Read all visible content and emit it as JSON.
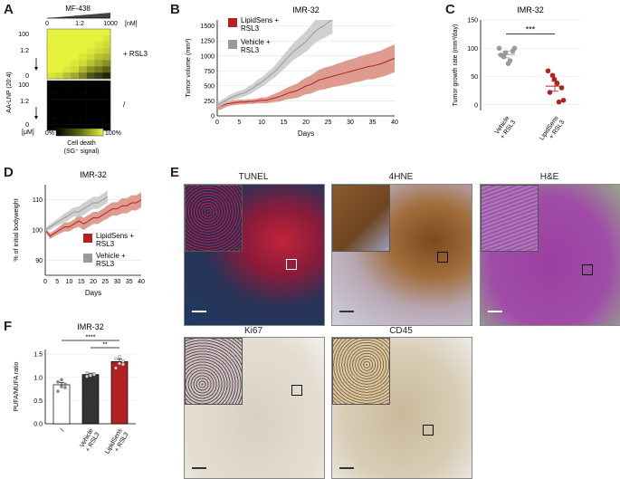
{
  "panels": {
    "A": {
      "letter": "A",
      "title": "MF-438",
      "ratio_label": "1:2",
      "unit_top": "[nM]",
      "ylabel": "AA-LNP (20:4)",
      "yticks": [
        "100",
        "1:2",
        "0"
      ],
      "group_top": "+ RSL3",
      "group_bottom": "/",
      "unit_bottom": "[μM]",
      "legend_title": "Cell death",
      "legend_sub": "(SG⁺ signal)",
      "legend_min": "0%",
      "legend_max": "100%"
    },
    "B": {
      "letter": "B",
      "title": "IMR-32"
    },
    "C": {
      "letter": "C",
      "title": "IMR-32"
    },
    "D": {
      "letter": "D",
      "title": "IMR-32"
    },
    "E": {
      "letter": "E",
      "stains": [
        "TUNEL",
        "4HNE",
        "H&E",
        "Ki67",
        "CD45"
      ]
    },
    "F": {
      "letter": "F",
      "title": "IMR-32"
    }
  },
  "colors": {
    "lipidsens": "#b22222",
    "lipidsens_band": "#d88b7e",
    "vehicle": "#9a9a9a",
    "vehicle_band": "#c8c8c8",
    "heat_high": "#e6f23c",
    "heat_low": "#000000"
  },
  "chart_data": [
    {
      "panel": "A",
      "type": "heatmap",
      "groups": [
        {
          "name": "+ RSL3",
          "rows": 8,
          "cols": 8,
          "values": [
            [
              1,
              1,
              1,
              1,
              1,
              1,
              1,
              1
            ],
            [
              1,
              1,
              1,
              1,
              1,
              1,
              1,
              0.95
            ],
            [
              1,
              1,
              1,
              1,
              1,
              1,
              0.95,
              0.9
            ],
            [
              1,
              1,
              1,
              1,
              1,
              0.95,
              0.9,
              0.85
            ],
            [
              1,
              1,
              1,
              1,
              0.95,
              0.9,
              0.8,
              0.75
            ],
            [
              1,
              1,
              1,
              0.95,
              0.9,
              0.8,
              0.7,
              0.6
            ],
            [
              1,
              1,
              0.95,
              0.9,
              0.75,
              0.6,
              0.5,
              0.4
            ],
            [
              0.95,
              0.9,
              0.8,
              0.7,
              0.55,
              0.35,
              0.25,
              0.15
            ]
          ]
        },
        {
          "name": "/",
          "rows": 8,
          "cols": 8,
          "values": [
            [
              0,
              0,
              0,
              0,
              0,
              0,
              0,
              0
            ],
            [
              0,
              0,
              0,
              0,
              0,
              0,
              0,
              0
            ],
            [
              0,
              0,
              0,
              0,
              0,
              0,
              0,
              0
            ],
            [
              0,
              0,
              0,
              0,
              0,
              0,
              0,
              0
            ],
            [
              0,
              0,
              0,
              0,
              0,
              0,
              0,
              0
            ],
            [
              0,
              0,
              0,
              0,
              0,
              0,
              0,
              0
            ],
            [
              0,
              0,
              0,
              0,
              0,
              0,
              0,
              0
            ],
            [
              0,
              0,
              0,
              0,
              0,
              0,
              0,
              0
            ]
          ]
        }
      ]
    },
    {
      "panel": "B",
      "type": "line",
      "title": "IMR-32",
      "xlabel": "Days",
      "ylabel": "Tumor volume (mm³)",
      "xlim": [
        0,
        40
      ],
      "ylim": [
        0,
        1600
      ],
      "xticks": [
        0,
        5,
        10,
        15,
        20,
        25,
        30,
        35,
        40
      ],
      "yticks": [
        0,
        250,
        500,
        750,
        1000,
        1250,
        1500
      ],
      "series": [
        {
          "name": "LipidSens + RSL3",
          "color_key": "lipidsens",
          "x": [
            0,
            1,
            2,
            3,
            4,
            5,
            6,
            7,
            8,
            9,
            10,
            11,
            12,
            13,
            14,
            15,
            16,
            17,
            18,
            19,
            20,
            21,
            22,
            23,
            24,
            25,
            26,
            27,
            28,
            29,
            30,
            31,
            32,
            33,
            34,
            35,
            36,
            37,
            38,
            39,
            40
          ],
          "y": [
            150,
            170,
            200,
            210,
            220,
            230,
            230,
            240,
            240,
            250,
            260,
            260,
            280,
            300,
            320,
            350,
            380,
            400,
            420,
            460,
            500,
            520,
            560,
            600,
            620,
            640,
            660,
            680,
            700,
            720,
            740,
            760,
            780,
            800,
            820,
            830,
            850,
            870,
            900,
            930,
            960
          ],
          "band": [
            60,
            60,
            50,
            40,
            40,
            40,
            40,
            40,
            40,
            40,
            50,
            50,
            60,
            70,
            80,
            90,
            100,
            110,
            120,
            130,
            140,
            150,
            160,
            170,
            180,
            180,
            180,
            190,
            190,
            200,
            200,
            200,
            210,
            210,
            210,
            220,
            220,
            220,
            230,
            230,
            230
          ]
        },
        {
          "name": "Vehicle + RSL3",
          "color_key": "vehicle",
          "x": [
            0,
            1,
            2,
            3,
            4,
            5,
            6,
            7,
            8,
            9,
            10,
            11,
            12,
            13,
            14,
            15,
            16,
            17,
            18,
            19,
            20,
            21,
            22,
            23,
            24,
            25,
            26
          ],
          "y": [
            180,
            220,
            260,
            300,
            330,
            360,
            380,
            420,
            460,
            520,
            560,
            620,
            680,
            740,
            820,
            900,
            980,
            1060,
            1120,
            1180,
            1240,
            1320,
            1400,
            1460,
            1500,
            1560,
            1600
          ],
          "band": [
            40,
            50,
            50,
            60,
            60,
            60,
            60,
            70,
            70,
            80,
            80,
            90,
            90,
            100,
            110,
            120,
            130,
            140,
            150,
            160,
            170,
            180,
            190,
            200,
            210,
            220,
            230
          ]
        }
      ]
    },
    {
      "panel": "C",
      "type": "scatter",
      "title": "IMR-32",
      "ylabel": "Tumor growth rate (mm³/day)",
      "ylim": [
        -10,
        150
      ],
      "yticks": [
        0,
        50,
        100,
        150
      ],
      "categories": [
        "Vehicle + RSL3",
        "LipidSens + RSL3"
      ],
      "significance": "***",
      "series": [
        {
          "name": "Vehicle + RSL3",
          "color_key": "vehicle",
          "mean": 89,
          "sem": 6,
          "values": [
            100,
            85,
            73,
            95,
            88,
            92,
            78,
            100
          ]
        },
        {
          "name": "LipidSens + RSL3",
          "color_key": "lipidsens",
          "mean": 33,
          "sem": 9,
          "values": [
            60,
            52,
            38,
            30,
            22,
            45,
            5,
            8
          ]
        }
      ]
    },
    {
      "panel": "D",
      "type": "line",
      "title": "IMR-32",
      "xlabel": "Days",
      "ylabel": "% of initial bodyweight",
      "xlim": [
        0,
        40
      ],
      "ylim": [
        85,
        115
      ],
      "xticks": [
        0,
        5,
        10,
        15,
        20,
        25,
        30,
        35,
        40
      ],
      "yticks": [
        90,
        100,
        110
      ],
      "series": [
        {
          "name": "LipidSens + RSL3",
          "color_key": "lipidsens",
          "x": [
            0,
            2,
            4,
            6,
            8,
            10,
            12,
            14,
            16,
            18,
            20,
            22,
            24,
            26,
            28,
            30,
            32,
            34,
            36,
            38,
            40
          ],
          "y": [
            100,
            98,
            99,
            100,
            101,
            101,
            102,
            103,
            102,
            103,
            104,
            104,
            105,
            106,
            107,
            107,
            108,
            108,
            109,
            109,
            110
          ],
          "band": [
            0.5,
            1,
            1,
            1.2,
            1.5,
            1.5,
            1.5,
            2,
            2,
            2,
            2,
            2,
            2,
            2.2,
            2.2,
            2.2,
            2.5,
            2.5,
            2.5,
            2.5,
            2.5
          ]
        },
        {
          "name": "Vehicle + RSL3",
          "color_key": "vehicle",
          "x": [
            0,
            2,
            4,
            6,
            8,
            10,
            12,
            14,
            16,
            18,
            20,
            22,
            24,
            26
          ],
          "y": [
            100,
            101,
            102,
            103,
            104,
            105,
            106,
            106,
            107,
            108,
            109,
            109,
            110,
            111
          ],
          "band": [
            0.5,
            1,
            1,
            1.2,
            1.5,
            1.5,
            1.5,
            1.8,
            2,
            2,
            2,
            2,
            2,
            2
          ]
        }
      ]
    },
    {
      "panel": "F",
      "type": "bar",
      "title": "IMR-32",
      "ylabel": "PUFA/MUFA ratio",
      "ylim": [
        0,
        1.6
      ],
      "yticks": [
        0.0,
        0.5,
        1.0,
        1.5
      ],
      "categories": [
        "/",
        "Vehicle + RSL3",
        "LipidSens + RSL3"
      ],
      "values": [
        0.84,
        1.06,
        1.34
      ],
      "errors": [
        0.05,
        0.03,
        0.06
      ],
      "points": [
        [
          0.7,
          0.8,
          0.85,
          0.9,
          0.95,
          0.78
        ],
        [
          1.02,
          1.05,
          1.08,
          1.1,
          1.04,
          1.06
        ],
        [
          1.2,
          1.3,
          1.35,
          1.4,
          1.45,
          1.28
        ]
      ],
      "bar_color_keys": [
        "white",
        "black",
        "lipidsens"
      ],
      "significance": [
        {
          "from": 0,
          "to": 2,
          "label": "****"
        },
        {
          "from": 1,
          "to": 2,
          "label": "**"
        }
      ]
    }
  ]
}
